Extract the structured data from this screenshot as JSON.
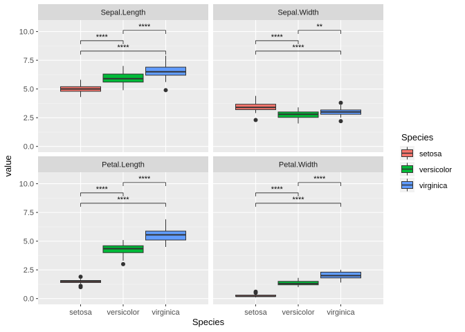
{
  "chart_data": {
    "type": "boxplot",
    "xlabel": "Species",
    "ylabel": "value",
    "categories": [
      "setosa",
      "versicolor",
      "virginica"
    ],
    "yticks": [
      0.0,
      2.5,
      5.0,
      7.5,
      10.0
    ],
    "ytick_labels": [
      "0.0",
      "2.5",
      "5.0",
      "7.5",
      "10.0"
    ],
    "ylim": [
      -0.5,
      11.0
    ],
    "legend": {
      "title": "Species",
      "position": "right",
      "items": [
        {
          "label": "setosa",
          "color": "#F8766D"
        },
        {
          "label": "versicolor",
          "color": "#00BA38"
        },
        {
          "label": "virginica",
          "color": "#619CFF"
        }
      ]
    },
    "panels": [
      {
        "title": "Sepal.Length",
        "boxes": [
          {
            "category": "setosa",
            "min": 4.3,
            "q1": 4.8,
            "median": 5.0,
            "q3": 5.2,
            "max": 5.8,
            "outliers": []
          },
          {
            "category": "versicolor",
            "min": 4.9,
            "q1": 5.6,
            "median": 5.9,
            "q3": 6.3,
            "max": 7.0,
            "outliers": []
          },
          {
            "category": "virginica",
            "min": 5.6,
            "q1": 6.2,
            "median": 6.5,
            "q3": 6.9,
            "max": 7.9,
            "outliers": [
              4.9
            ]
          }
        ],
        "comparisons": [
          {
            "from": "setosa",
            "to": "versicolor",
            "y": 9.2,
            "label": "****"
          },
          {
            "from": "versicolor",
            "to": "virginica",
            "y": 10.1,
            "label": "****"
          },
          {
            "from": "setosa",
            "to": "virginica",
            "y": 8.3,
            "label": "****"
          }
        ]
      },
      {
        "title": "Sepal.Width",
        "boxes": [
          {
            "category": "setosa",
            "min": 2.9,
            "q1": 3.2,
            "median": 3.4,
            "q3": 3.675,
            "max": 4.4,
            "outliers": [
              2.3
            ]
          },
          {
            "category": "versicolor",
            "min": 2.0,
            "q1": 2.525,
            "median": 2.8,
            "q3": 3.0,
            "max": 3.4,
            "outliers": []
          },
          {
            "category": "virginica",
            "min": 2.5,
            "q1": 2.8,
            "median": 3.0,
            "q3": 3.175,
            "max": 3.6,
            "outliers": [
              3.8,
              2.2
            ]
          }
        ],
        "comparisons": [
          {
            "from": "setosa",
            "to": "versicolor",
            "y": 9.2,
            "label": "****"
          },
          {
            "from": "versicolor",
            "to": "virginica",
            "y": 10.1,
            "label": "**"
          },
          {
            "from": "setosa",
            "to": "virginica",
            "y": 8.3,
            "label": "****"
          }
        ]
      },
      {
        "title": "Petal.Length",
        "boxes": [
          {
            "category": "setosa",
            "min": 1.3,
            "q1": 1.4,
            "median": 1.5,
            "q3": 1.575,
            "max": 1.7,
            "outliers": [
              1.9,
              1.1,
              1.0
            ]
          },
          {
            "category": "versicolor",
            "min": 3.3,
            "q1": 4.0,
            "median": 4.35,
            "q3": 4.6,
            "max": 5.1,
            "outliers": [
              3.0
            ]
          },
          {
            "category": "virginica",
            "min": 4.5,
            "q1": 5.1,
            "median": 5.55,
            "q3": 5.875,
            "max": 6.9,
            "outliers": []
          }
        ],
        "comparisons": [
          {
            "from": "setosa",
            "to": "versicolor",
            "y": 9.2,
            "label": "****"
          },
          {
            "from": "versicolor",
            "to": "virginica",
            "y": 10.1,
            "label": "****"
          },
          {
            "from": "setosa",
            "to": "virginica",
            "y": 8.3,
            "label": "****"
          }
        ]
      },
      {
        "title": "Petal.Width",
        "boxes": [
          {
            "category": "setosa",
            "min": 0.1,
            "q1": 0.2,
            "median": 0.2,
            "q3": 0.3,
            "max": 0.4,
            "outliers": [
              0.5,
              0.6
            ]
          },
          {
            "category": "versicolor",
            "min": 1.0,
            "q1": 1.2,
            "median": 1.3,
            "q3": 1.5,
            "max": 1.8,
            "outliers": []
          },
          {
            "category": "virginica",
            "min": 1.4,
            "q1": 1.8,
            "median": 2.0,
            "q3": 2.3,
            "max": 2.5,
            "outliers": []
          }
        ],
        "comparisons": [
          {
            "from": "setosa",
            "to": "versicolor",
            "y": 9.2,
            "label": "****"
          },
          {
            "from": "versicolor",
            "to": "virginica",
            "y": 10.1,
            "label": "****"
          },
          {
            "from": "setosa",
            "to": "virginica",
            "y": 8.3,
            "label": "****"
          }
        ]
      }
    ]
  }
}
